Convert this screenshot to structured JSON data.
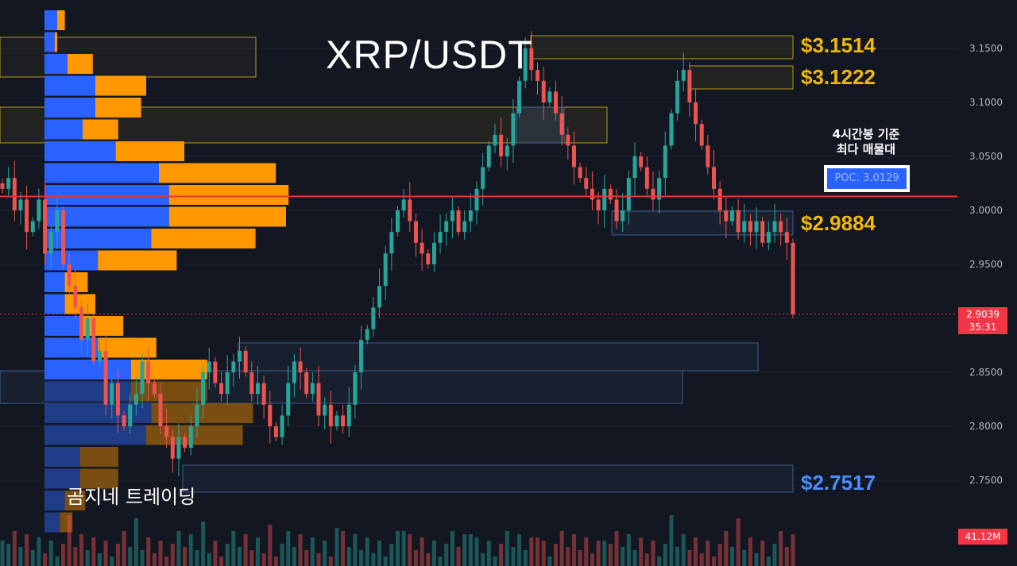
{
  "title": "XRP/USDT",
  "watermark": "곰지네 트레이딩",
  "levels": [
    {
      "label": "$3.1514",
      "value": 3.1514,
      "color": "#f0b90b"
    },
    {
      "label": "$3.1222",
      "value": 3.1222,
      "color": "#f0b90b"
    },
    {
      "label": "$2.9884",
      "value": 2.9884,
      "color": "#f0b90b"
    },
    {
      "label": "$2.7517",
      "value": 2.7517,
      "color": "#4c8dff"
    }
  ],
  "poc": {
    "note_line1": "4시간봉 기준",
    "note_line2": "최다 매물대",
    "label": "POC: 3.0129",
    "value": 3.0129
  },
  "current_price": {
    "price": "2.9039",
    "countdown": "35:31",
    "value": 2.9039
  },
  "volume_tag": "41.12M",
  "colors": {
    "up": "#26a69a",
    "down": "#ef5350",
    "poc_line": "#e53935",
    "volume_buy": "#2962ff",
    "volume_sell": "#ff9800"
  },
  "chart_data": {
    "type": "candlestick",
    "title": "XRP/USDT",
    "y_ticks": [
      "3.1500",
      "3.1000",
      "3.0500",
      "3.0000",
      "2.9500",
      "2.9000",
      "2.8500",
      "2.8000",
      "2.7500"
    ],
    "ylim": [
      2.7,
      3.19
    ],
    "key_levels": [
      3.1514,
      3.1222,
      2.9884,
      2.7517
    ],
    "poc": 3.0129,
    "last_price": 2.9039,
    "close_series": [
      3.02,
      3.03,
      3.0,
      3.01,
      2.98,
      2.99,
      3.01,
      2.96,
      2.98,
      3.0,
      2.95,
      2.93,
      2.91,
      2.88,
      2.9,
      2.86,
      2.87,
      2.82,
      2.84,
      2.81,
      2.8,
      2.82,
      2.83,
      2.86,
      2.84,
      2.83,
      2.8,
      2.79,
      2.77,
      2.79,
      2.78,
      2.8,
      2.82,
      2.85,
      2.86,
      2.84,
      2.83,
      2.85,
      2.86,
      2.87,
      2.85,
      2.83,
      2.84,
      2.82,
      2.8,
      2.79,
      2.81,
      2.84,
      2.86,
      2.85,
      2.83,
      2.84,
      2.81,
      2.82,
      2.8,
      2.81,
      2.8,
      2.82,
      2.85,
      2.88,
      2.89,
      2.91,
      2.93,
      2.96,
      2.98,
      3.0,
      3.01,
      2.99,
      2.97,
      2.96,
      2.95,
      2.97,
      2.98,
      2.99,
      3.0,
      2.98,
      2.99,
      3.0,
      3.02,
      3.04,
      3.06,
      3.07,
      3.05,
      3.06,
      3.09,
      3.12,
      3.15,
      3.13,
      3.12,
      3.1,
      3.11,
      3.09,
      3.07,
      3.06,
      3.04,
      3.03,
      3.02,
      3.01,
      3.0,
      3.02,
      3.01,
      2.99,
      3.0,
      3.03,
      3.05,
      3.04,
      3.02,
      3.01,
      3.03,
      3.06,
      3.09,
      3.12,
      3.13,
      3.1,
      3.08,
      3.06,
      3.04,
      3.02,
      3.0,
      2.99,
      3.0,
      2.98,
      2.99,
      2.98,
      2.99,
      2.97,
      2.98,
      2.99,
      2.98,
      2.97,
      2.9039
    ],
    "volume_profile": [
      {
        "price": 3.18,
        "buy": 0.05,
        "sell": 0.03
      },
      {
        "price": 3.16,
        "buy": 0.04,
        "sell": 0.01
      },
      {
        "price": 3.14,
        "buy": 0.09,
        "sell": 0.1
      },
      {
        "price": 3.12,
        "buy": 0.2,
        "sell": 0.2
      },
      {
        "price": 3.1,
        "buy": 0.2,
        "sell": 0.18
      },
      {
        "price": 3.08,
        "buy": 0.15,
        "sell": 0.14
      },
      {
        "price": 3.06,
        "buy": 0.28,
        "sell": 0.27
      },
      {
        "price": 3.04,
        "buy": 0.45,
        "sell": 0.46
      },
      {
        "price": 3.02,
        "buy": 0.49,
        "sell": 0.47
      },
      {
        "price": 3.0,
        "buy": 0.49,
        "sell": 0.46
      },
      {
        "price": 2.98,
        "buy": 0.42,
        "sell": 0.41
      },
      {
        "price": 2.96,
        "buy": 0.21,
        "sell": 0.31
      },
      {
        "price": 2.94,
        "buy": 0.08,
        "sell": 0.09
      },
      {
        "price": 2.92,
        "buy": 0.08,
        "sell": 0.12
      },
      {
        "price": 2.9,
        "buy": 0.15,
        "sell": 0.16
      },
      {
        "price": 2.88,
        "buy": 0.21,
        "sell": 0.23
      },
      {
        "price": 2.86,
        "buy": 0.34,
        "sell": 0.3
      },
      {
        "price": 2.84,
        "buy": 0.34,
        "sell": 0.3
      },
      {
        "price": 2.82,
        "buy": 0.42,
        "sell": 0.4
      },
      {
        "price": 2.8,
        "buy": 0.4,
        "sell": 0.38
      },
      {
        "price": 2.78,
        "buy": 0.14,
        "sell": 0.15
      },
      {
        "price": 2.76,
        "buy": 0.14,
        "sell": 0.15
      },
      {
        "price": 2.74,
        "buy": 0.08,
        "sell": 0.08
      },
      {
        "price": 2.72,
        "buy": 0.06,
        "sell": 0.05
      }
    ]
  }
}
